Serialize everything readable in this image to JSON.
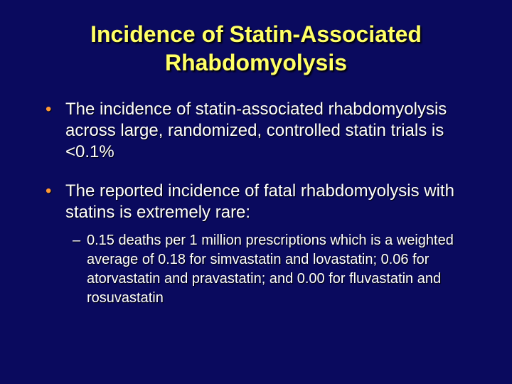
{
  "title": "Incidence of Statin-Associated Rhabdomyolysis",
  "bullets": [
    "The incidence of statin-associated rhabdomyolysis across large, randomized, controlled statin trials is <0.1%",
    "The reported incidence of fatal rhabdomyolysis with statins is extremely rare:"
  ],
  "sub_bullets": [
    "0.15 deaths per 1 million prescriptions  which is a weighted average of 0.18 for simvastatin and lovastatin; 0.06 for atorvastatin and pravastatin; and 0.00 for fluvastatin and rosuvastatin"
  ],
  "bullet_glyph": "•",
  "sub_glyph": "–"
}
